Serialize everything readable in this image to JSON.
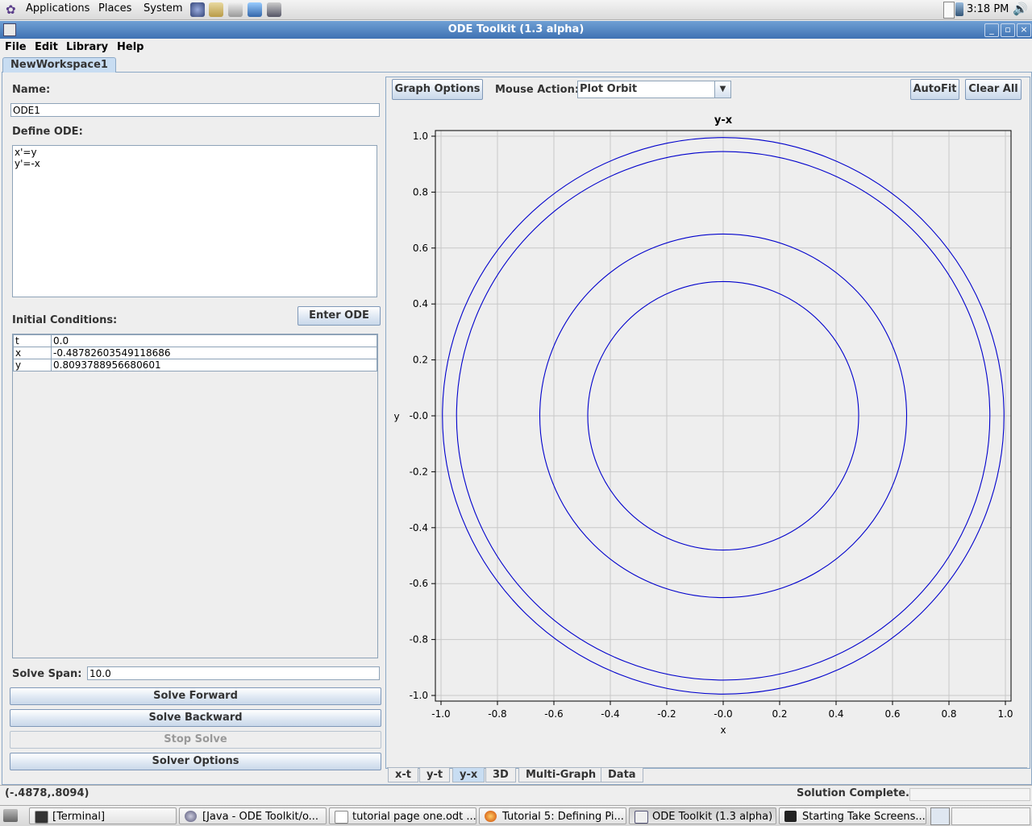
{
  "top_panel": {
    "menus": [
      "Applications",
      "Places",
      "System"
    ],
    "clock": "3:18 PM"
  },
  "window": {
    "title": "ODE Toolkit (1.3 alpha)",
    "buttons": [
      "_",
      "▫",
      "×"
    ]
  },
  "menubar": [
    "File",
    "Edit",
    "Library",
    "Help"
  ],
  "workspace_tab": "NewWorkspace1",
  "left": {
    "name_label": "Name:",
    "name_value": "ODE1",
    "define_label": "Define ODE:",
    "ode_lines": [
      "x'=y",
      "y'=-x"
    ],
    "enter_button": "Enter ODE",
    "initial_label": "Initial Conditions:",
    "initial_conditions": [
      {
        "var": "t",
        "value": "0.0"
      },
      {
        "var": "x",
        "value": "-0.48782603549118686"
      },
      {
        "var": "y",
        "value": "0.8093788956680601"
      }
    ],
    "solve_span_label": "Solve Span:",
    "solve_span_value": "10.0",
    "buttons": {
      "forward": "Solve Forward",
      "backward": "Solve Backward",
      "stop": "Stop Solve",
      "options": "Solver Options"
    }
  },
  "right": {
    "graph_options": "Graph Options",
    "mouse_action_label": "Mouse Action:",
    "mouse_action_value": "Plot Orbit",
    "autofit": "AutoFit",
    "clear_all": "Clear All",
    "tabs": [
      "x-t",
      "y-t",
      "y-x",
      "3D",
      "Multi-Graph",
      "Data"
    ],
    "active_tab": "y-x"
  },
  "chart_data": {
    "type": "line",
    "title": "y-x",
    "xlabel": "x",
    "ylabel": "y",
    "xlim": [
      -1.0,
      1.0
    ],
    "ylim": [
      -1.0,
      1.0
    ],
    "xticks": [
      "-1.0",
      "-0.8",
      "-0.6",
      "-0.4",
      "-0.2",
      "-0.0",
      "0.2",
      "0.4",
      "0.6",
      "0.8",
      "1.0"
    ],
    "yticks": [
      "1.0",
      "0.8",
      "0.6",
      "0.4",
      "0.2",
      "-0.0",
      "-0.2",
      "-0.4",
      "-0.6",
      "-0.8",
      "-1.0"
    ],
    "grid": true,
    "series_color": "#0000cc",
    "orbits": [
      {
        "radius": 0.48
      },
      {
        "radius": 0.65
      },
      {
        "radius": 0.945
      },
      {
        "radius": 0.995
      }
    ]
  },
  "status": {
    "coords": "(-.4878,.8094)",
    "message": "Solution Complete."
  },
  "taskbar": [
    {
      "label": "[Terminal]",
      "icon": "terminal-icon"
    },
    {
      "label": "[Java - ODE Toolkit/o...",
      "icon": "eclipse-icon"
    },
    {
      "label": "tutorial page one.odt ...",
      "icon": "document-icon"
    },
    {
      "label": "Tutorial 5: Defining Pi...",
      "icon": "firefox-icon"
    },
    {
      "label": "ODE Toolkit (1.3 alpha)",
      "icon": "java-icon"
    },
    {
      "label": "Starting Take Screens...",
      "icon": "camera-icon"
    }
  ]
}
